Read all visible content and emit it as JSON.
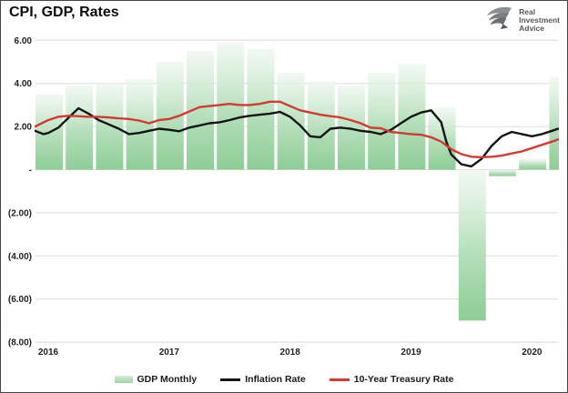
{
  "header": {
    "title": "CPI, GDP, Rates",
    "logo": {
      "icon": "eagle-icon",
      "brand_lines": [
        "Real",
        "Investment",
        "Advice"
      ]
    }
  },
  "chart_data": {
    "type": "combo-bar-line",
    "title": "CPI, GDP, Rates",
    "ylim": [
      -8,
      6
    ],
    "grid": true,
    "legend_position": "bottom",
    "y_axis_ticks": [
      {
        "label": "6.00",
        "value": 6
      },
      {
        "label": "4.00",
        "value": 4
      },
      {
        "label": "2.00",
        "value": 2
      },
      {
        "label": "-",
        "value": 0
      },
      {
        "label": "(2.00)",
        "value": -2
      },
      {
        "label": "(4.00)",
        "value": -4
      },
      {
        "label": "(6.00)",
        "value": -6
      },
      {
        "label": "(8.00)",
        "value": -8
      }
    ],
    "x_axis_ticks": [
      {
        "label": "2016",
        "month": 0
      },
      {
        "label": "2017",
        "month": 12
      },
      {
        "label": "2018",
        "month": 24
      },
      {
        "label": "2019",
        "month": 36
      },
      {
        "label": "2020",
        "month": 48
      }
    ],
    "series": [
      {
        "name": "GDP Monthly",
        "type": "bar",
        "color_top": "#edf7ee",
        "color_bottom": "#8ecd96",
        "quarters": [
          {
            "label": "2016 Q1",
            "value": 3.5
          },
          {
            "label": "2016 Q2",
            "value": 3.9
          },
          {
            "label": "2016 Q3",
            "value": 4.0
          },
          {
            "label": "2016 Q4",
            "value": 4.2
          },
          {
            "label": "2017 Q1",
            "value": 5.0
          },
          {
            "label": "2017 Q2",
            "value": 5.5
          },
          {
            "label": "2017 Q3",
            "value": 5.9
          },
          {
            "label": "2017 Q4",
            "value": 5.6
          },
          {
            "label": "2018 Q1",
            "value": 4.5
          },
          {
            "label": "2018 Q2",
            "value": 4.1
          },
          {
            "label": "2018 Q3",
            "value": 3.9
          },
          {
            "label": "2018 Q4",
            "value": 4.5
          },
          {
            "label": "2019 Q1",
            "value": 4.9
          },
          {
            "label": "2019 Q2",
            "value": 2.9
          },
          {
            "label": "2019 Q3",
            "value": -7.0
          },
          {
            "label": "2019 Q4",
            "value": -0.3
          },
          {
            "label": "2020 Q1",
            "value": 0.5
          },
          {
            "label": "2020 Q2",
            "value": 4.3
          }
        ]
      },
      {
        "name": "Inflation Rate",
        "type": "line",
        "color": "#141414",
        "points": [
          [
            -1.3,
            1.8
          ],
          [
            -0.5,
            1.65
          ],
          [
            0,
            1.7
          ],
          [
            1,
            1.95
          ],
          [
            2,
            2.4
          ],
          [
            3,
            2.85
          ],
          [
            4,
            2.6
          ],
          [
            5,
            2.3
          ],
          [
            6,
            2.1
          ],
          [
            7,
            1.9
          ],
          [
            8,
            1.65
          ],
          [
            9,
            1.7
          ],
          [
            10,
            1.8
          ],
          [
            11,
            1.9
          ],
          [
            12,
            1.85
          ],
          [
            13,
            1.78
          ],
          [
            14,
            1.95
          ],
          [
            15,
            2.05
          ],
          [
            16,
            2.15
          ],
          [
            17,
            2.2
          ],
          [
            18,
            2.3
          ],
          [
            19,
            2.42
          ],
          [
            20,
            2.5
          ],
          [
            21,
            2.55
          ],
          [
            22,
            2.6
          ],
          [
            23,
            2.68
          ],
          [
            24,
            2.45
          ],
          [
            25,
            2.05
          ],
          [
            26,
            1.55
          ],
          [
            27,
            1.5
          ],
          [
            28,
            1.9
          ],
          [
            29,
            1.95
          ],
          [
            30,
            1.9
          ],
          [
            31,
            1.8
          ],
          [
            32,
            1.75
          ],
          [
            33,
            1.65
          ],
          [
            34,
            1.85
          ],
          [
            35,
            2.15
          ],
          [
            36,
            2.45
          ],
          [
            37,
            2.65
          ],
          [
            38,
            2.75
          ],
          [
            39,
            2.2
          ],
          [
            39.5,
            1.3
          ],
          [
            40,
            0.7
          ],
          [
            41,
            0.25
          ],
          [
            42,
            0.15
          ],
          [
            43,
            0.5
          ],
          [
            44,
            1.1
          ],
          [
            45,
            1.55
          ],
          [
            46,
            1.75
          ],
          [
            47,
            1.65
          ],
          [
            48,
            1.55
          ],
          [
            49,
            1.65
          ],
          [
            50,
            1.8
          ],
          [
            50.6,
            1.9
          ]
        ]
      },
      {
        "name": "10-Year Treasury Rate",
        "type": "line",
        "color": "#d13b33",
        "points": [
          [
            -1.3,
            2.0
          ],
          [
            0,
            2.3
          ],
          [
            1,
            2.45
          ],
          [
            2,
            2.5
          ],
          [
            3,
            2.48
          ],
          [
            4,
            2.45
          ],
          [
            5,
            2.45
          ],
          [
            6,
            2.42
          ],
          [
            7,
            2.38
          ],
          [
            8,
            2.35
          ],
          [
            9,
            2.28
          ],
          [
            10,
            2.15
          ],
          [
            11,
            2.3
          ],
          [
            12,
            2.35
          ],
          [
            13,
            2.5
          ],
          [
            14,
            2.7
          ],
          [
            15,
            2.9
          ],
          [
            16,
            2.95
          ],
          [
            17,
            3.0
          ],
          [
            18,
            3.05
          ],
          [
            19,
            3.0
          ],
          [
            20,
            3.0
          ],
          [
            21,
            3.05
          ],
          [
            22,
            3.15
          ],
          [
            23,
            3.15
          ],
          [
            24,
            2.95
          ],
          [
            25,
            2.75
          ],
          [
            26,
            2.65
          ],
          [
            27,
            2.55
          ],
          [
            28,
            2.48
          ],
          [
            29,
            2.42
          ],
          [
            30,
            2.3
          ],
          [
            31,
            2.15
          ],
          [
            32,
            1.95
          ],
          [
            33,
            1.92
          ],
          [
            34,
            1.75
          ],
          [
            35,
            1.7
          ],
          [
            36,
            1.65
          ],
          [
            37,
            1.62
          ],
          [
            38,
            1.5
          ],
          [
            39,
            1.3
          ],
          [
            40,
            0.95
          ],
          [
            41,
            0.72
          ],
          [
            42,
            0.6
          ],
          [
            43,
            0.58
          ],
          [
            44,
            0.6
          ],
          [
            45,
            0.65
          ],
          [
            46,
            0.75
          ],
          [
            47,
            0.85
          ],
          [
            48,
            1.0
          ],
          [
            49,
            1.15
          ],
          [
            50,
            1.3
          ],
          [
            50.6,
            1.4
          ]
        ]
      }
    ]
  },
  "styles": {
    "gridline_color": "#dadada",
    "axis_label_color": "#1f1f1f"
  }
}
